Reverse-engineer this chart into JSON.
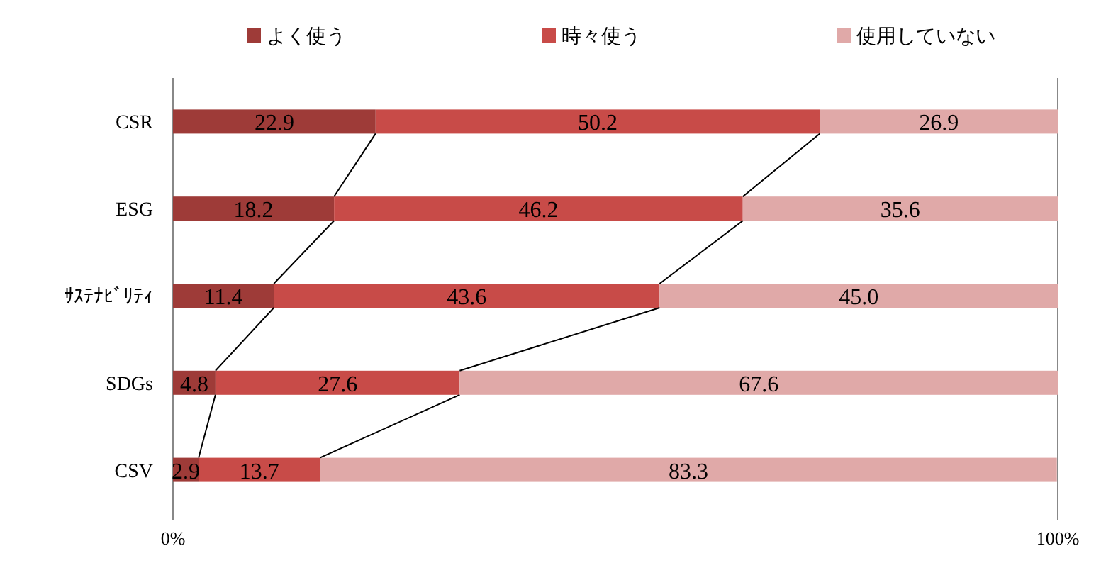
{
  "chart_data": {
    "type": "bar",
    "orientation": "horizontal",
    "stacked": true,
    "legend": "top",
    "categories": [
      "CSR",
      "ESG",
      "ｻｽﾃﾅﾋﾞﾘﾃｨ",
      "SDGs",
      "CSV"
    ],
    "series": [
      {
        "name": "よく使う",
        "color": "#9e3b38",
        "values": [
          22.9,
          18.2,
          11.4,
          4.8,
          2.9
        ],
        "value_labels": [
          "22.9",
          "18.2",
          "11.4",
          "4.8",
          "2.9"
        ]
      },
      {
        "name": "時々使う",
        "color": "#c84b48",
        "values": [
          50.2,
          46.2,
          43.6,
          27.6,
          13.7
        ],
        "value_labels": [
          "50.2",
          "46.2",
          "43.6",
          "27.6",
          "13.7"
        ]
      },
      {
        "name": "使用していない",
        "color": "#e0a9a8",
        "values": [
          26.9,
          35.6,
          45.0,
          67.6,
          83.3
        ],
        "value_labels": [
          "26.9",
          "35.6",
          "45.0",
          "67.6",
          "83.3"
        ]
      }
    ],
    "xlim": [
      0,
      100
    ],
    "xticks": [
      {
        "value": 0,
        "label": "0%"
      },
      {
        "value": 100,
        "label": "100%"
      }
    ]
  }
}
